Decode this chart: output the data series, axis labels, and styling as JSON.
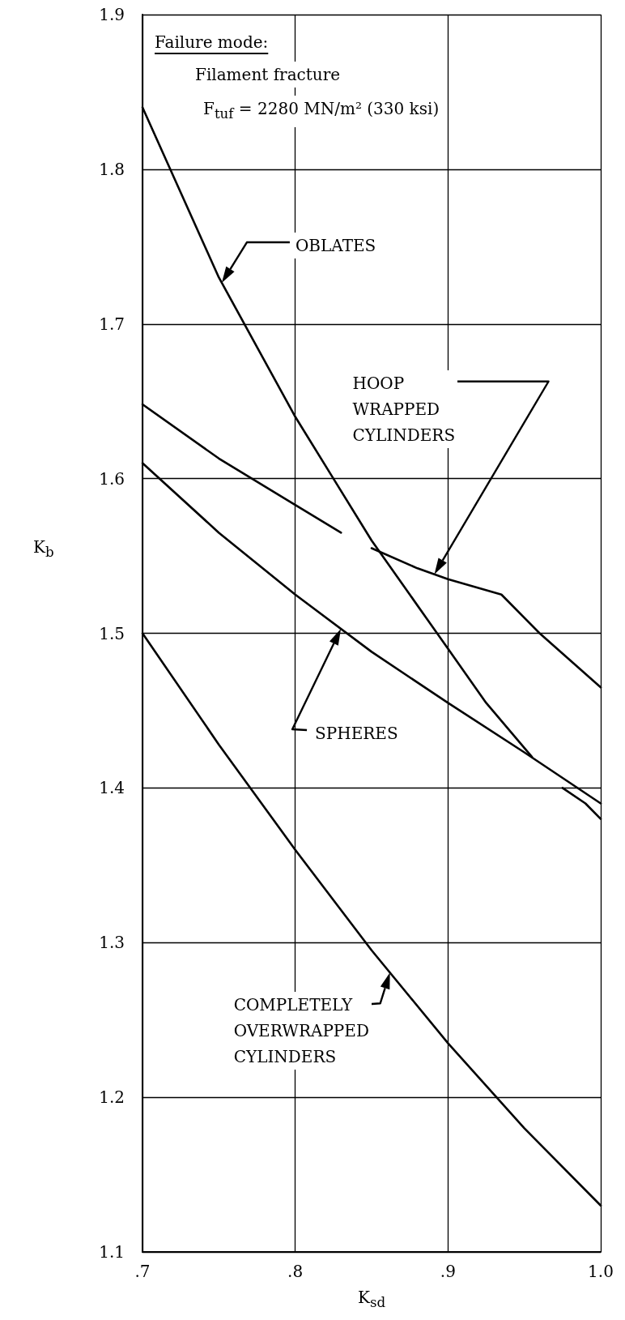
{
  "chart_data": {
    "type": "line",
    "xlabel": "K$_{sd}$",
    "ylabel": "K$_{b}$",
    "xlim": [
      0.7,
      1.0
    ],
    "xticks": [
      {
        "value": 0.7,
        "label": ".7"
      },
      {
        "value": 0.8,
        "label": ".8"
      },
      {
        "value": 0.9,
        "label": ".9"
      },
      {
        "value": 1.0,
        "label": "1.0"
      }
    ],
    "ylim": [
      1.1,
      1.9
    ],
    "yticks": [
      1.1,
      1.2,
      1.3,
      1.4,
      1.5,
      1.6,
      1.7,
      1.8,
      1.9
    ],
    "grid": true,
    "marker": "none",
    "line_style": "solid",
    "series": [
      {
        "name": "OBLATES",
        "color": "#000000",
        "x": [
          0.7,
          0.725,
          0.75,
          0.775,
          0.8,
          0.825,
          0.85,
          0.875,
          0.9,
          0.925,
          0.955,
          0.965,
          0.975,
          0.99,
          1.0
        ],
        "values": [
          1.84,
          1.785,
          1.73,
          1.685,
          1.64,
          1.6,
          1.56,
          1.525,
          1.49,
          1.455,
          1.42,
          null,
          1.4,
          1.39,
          1.38
        ]
      },
      {
        "name": "HOOP\nWRAPPED\nCYLINDERS",
        "color": "#000000",
        "x": [
          0.7,
          0.75,
          0.8,
          0.83,
          0.84,
          0.85,
          0.88,
          0.9,
          0.935,
          0.96,
          1.0
        ],
        "values": [
          1.648,
          1.613,
          1.583,
          1.565,
          null,
          1.555,
          1.542,
          1.535,
          1.525,
          1.5,
          1.465
        ]
      },
      {
        "name": "SPHERES",
        "color": "#000000",
        "x": [
          0.7,
          0.75,
          0.8,
          0.85,
          0.9,
          0.95,
          1.0
        ],
        "values": [
          1.61,
          1.565,
          1.525,
          1.488,
          1.455,
          1.423,
          1.39
        ]
      },
      {
        "name": "COMPLETELY\nOVERWRAPPED\nCYLINDERS",
        "color": "#000000",
        "x": [
          0.7,
          0.75,
          0.8,
          0.85,
          0.9,
          0.95,
          1.0
        ],
        "values": [
          1.5,
          1.428,
          1.36,
          1.295,
          1.235,
          1.18,
          1.13
        ]
      }
    ],
    "annotations": [
      "Failure mode:",
      "Filament fracture",
      "F$_{tuf}$ = 2280 MN/m² (330 ksi)"
    ]
  }
}
